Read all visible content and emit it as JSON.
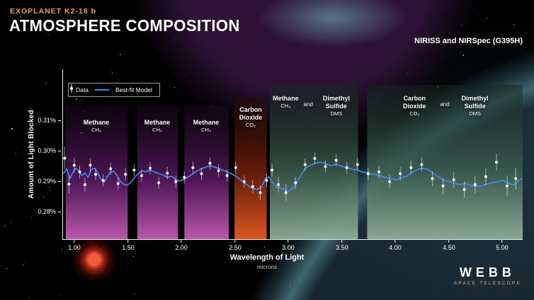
{
  "header": {
    "kicker": "EXOPLANET K2-18 b",
    "title": "ATMOSPHERE COMPOSITION",
    "instrument": "NIRISS and NIRSpec (G395H)"
  },
  "legend": {
    "data_label": "Data",
    "model_label": "Best-fit Model"
  },
  "colors": {
    "background": "#000000",
    "kicker": "#eca23e",
    "model_line": "#3d8dff",
    "data_point": "#ffffff",
    "webb_gold": "#d9b873",
    "band_gradients": {
      "methane": [
        "#1f0724",
        "#5a1a62",
        "#c45cb4"
      ],
      "co2": [
        "#260a05",
        "#7a220c",
        "#e85c24"
      ],
      "dms": [
        "#16251f",
        "#3c5c4e",
        "#8fae97"
      ]
    }
  },
  "chart_data": {
    "type": "line",
    "title": "Exoplanet K2-18 b Atmosphere Composition",
    "xlabel": "Wavelength of Light",
    "xunit": "microns",
    "ylabel": "Amount of Light Blocked",
    "xlim": [
      0.885,
      5.185
    ],
    "ylim": [
      0.2709,
      0.3267
    ],
    "x_ticks": [
      1.0,
      1.5,
      2.0,
      2.5,
      3.0,
      3.5,
      4.0,
      4.5,
      5.0
    ],
    "x_tick_labels": [
      "1.00",
      "1.50",
      "2.00",
      "2.50",
      "3.00",
      "3.50",
      "4.00",
      "4.50",
      "5.00"
    ],
    "y_ticks": [
      0.28,
      0.29,
      0.3,
      0.31
    ],
    "y_tick_labels": [
      "0.28%",
      "0.29%",
      "0.30%",
      "0.31%"
    ],
    "legend_position": "top-left",
    "grid": false,
    "bands": [
      {
        "molecule": "Methane",
        "formula": "CH₄",
        "x0": 0.91,
        "x1": 1.49,
        "style": "methane"
      },
      {
        "molecule": "Methane",
        "formula": "CH₄",
        "x0": 1.58,
        "x1": 1.96,
        "style": "methane"
      },
      {
        "molecule": "Methane",
        "formula": "CH₄",
        "x0": 2.02,
        "x1": 2.435,
        "style": "methane"
      },
      {
        "molecule": "Carbon Dioxide",
        "formula": "CO₂",
        "x0": 2.49,
        "x1": 2.79,
        "style": "co2"
      },
      {
        "name1": "Methane",
        "formula1": "CH₄",
        "conj": "and",
        "name2": "Dimethyl Sulfide",
        "formula2": "DMS",
        "x0": 2.82,
        "x1": 3.645,
        "style": "dms"
      },
      {
        "name1": "Carbon Dioxide",
        "formula1": "CO₂",
        "conj": "and",
        "name2": "Dimethyl Sulfide",
        "formula2": "DMS",
        "x0": 3.73,
        "x1": 5.185,
        "style": "dms"
      }
    ],
    "series": [
      {
        "name": "Best-fit Model",
        "type": "line",
        "color": "#3d8dff",
        "x": [
          0.89,
          0.92,
          0.95,
          0.98,
          1.0,
          1.03,
          1.06,
          1.09,
          1.12,
          1.15,
          1.18,
          1.21,
          1.24,
          1.27,
          1.3,
          1.33,
          1.36,
          1.39,
          1.42,
          1.45,
          1.48,
          1.51,
          1.54,
          1.57,
          1.6,
          1.63,
          1.66,
          1.7,
          1.74,
          1.78,
          1.82,
          1.86,
          1.9,
          1.94,
          1.98,
          2.02,
          2.06,
          2.1,
          2.14,
          2.18,
          2.22,
          2.26,
          2.3,
          2.34,
          2.38,
          2.42,
          2.46,
          2.5,
          2.54,
          2.58,
          2.62,
          2.66,
          2.7,
          2.74,
          2.78,
          2.81,
          2.84,
          2.88,
          2.92,
          2.96,
          3.0,
          3.04,
          3.08,
          3.12,
          3.16,
          3.2,
          3.24,
          3.28,
          3.32,
          3.36,
          3.4,
          3.44,
          3.48,
          3.52,
          3.56,
          3.6,
          3.64,
          3.68,
          3.72,
          3.76,
          3.8,
          3.85,
          3.9,
          3.95,
          4.0,
          4.05,
          4.1,
          4.15,
          4.2,
          4.25,
          4.3,
          4.35,
          4.4,
          4.45,
          4.5,
          4.55,
          4.6,
          4.65,
          4.7,
          4.75,
          4.8,
          4.85,
          4.9,
          4.95,
          5.0,
          5.05,
          5.1,
          5.14,
          5.18
        ],
        "y": [
          0.2925,
          0.294,
          0.2908,
          0.293,
          0.2942,
          0.2936,
          0.2918,
          0.2926,
          0.2912,
          0.2938,
          0.2942,
          0.2926,
          0.2905,
          0.2896,
          0.2916,
          0.293,
          0.2932,
          0.2918,
          0.29,
          0.289,
          0.2886,
          0.2892,
          0.2905,
          0.2918,
          0.2928,
          0.2934,
          0.293,
          0.2936,
          0.293,
          0.2924,
          0.292,
          0.2912,
          0.2916,
          0.2904,
          0.29,
          0.2906,
          0.2914,
          0.2924,
          0.2934,
          0.294,
          0.2946,
          0.295,
          0.2946,
          0.2942,
          0.2936,
          0.293,
          0.2924,
          0.2916,
          0.2906,
          0.2894,
          0.2884,
          0.2876,
          0.2872,
          0.288,
          0.2908,
          0.2914,
          0.2898,
          0.288,
          0.2876,
          0.2872,
          0.2866,
          0.288,
          0.29,
          0.2925,
          0.2944,
          0.2952,
          0.2958,
          0.2962,
          0.296,
          0.2954,
          0.295,
          0.2956,
          0.295,
          0.2946,
          0.2942,
          0.2938,
          0.2936,
          0.293,
          0.2928,
          0.2924,
          0.2922,
          0.2918,
          0.2912,
          0.2908,
          0.2904,
          0.291,
          0.2916,
          0.2928,
          0.2938,
          0.2942,
          0.2938,
          0.2926,
          0.2912,
          0.2902,
          0.2898,
          0.2892,
          0.2888,
          0.2892,
          0.2886,
          0.2882,
          0.2884,
          0.289,
          0.2894,
          0.2898,
          0.2902,
          0.2894,
          0.2886,
          0.29,
          0.2908
        ]
      },
      {
        "name": "Data",
        "type": "scatter",
        "color": "#ffffff",
        "x": [
          0.9,
          0.94,
          0.99,
          1.04,
          1.09,
          1.14,
          1.19,
          1.26,
          1.33,
          1.4,
          1.47,
          1.55,
          1.62,
          1.7,
          1.78,
          1.86,
          1.94,
          2.02,
          2.1,
          2.18,
          2.26,
          2.34,
          2.42,
          2.5,
          2.58,
          2.66,
          2.73,
          2.79,
          2.84,
          2.9,
          2.97,
          3.06,
          3.15,
          3.24,
          3.34,
          3.44,
          3.54,
          3.64,
          3.74,
          3.84,
          3.94,
          4.04,
          4.14,
          4.24,
          4.34,
          4.44,
          4.54,
          4.64,
          4.74,
          4.84,
          4.94,
          5.04,
          5.12
        ],
        "y": [
          0.2975,
          0.289,
          0.2952,
          0.293,
          0.2888,
          0.2952,
          0.2922,
          0.2902,
          0.294,
          0.2892,
          0.2922,
          0.2936,
          0.2918,
          0.2942,
          0.2894,
          0.2926,
          0.2898,
          0.2912,
          0.2944,
          0.2924,
          0.2958,
          0.2934,
          0.2918,
          0.2944,
          0.2898,
          0.2882,
          0.2862,
          0.2902,
          0.2936,
          0.2888,
          0.2862,
          0.2894,
          0.2954,
          0.2974,
          0.2948,
          0.2968,
          0.2944,
          0.2954,
          0.2924,
          0.293,
          0.2898,
          0.2924,
          0.2944,
          0.2954,
          0.2908,
          0.2884,
          0.2904,
          0.2872,
          0.2888,
          0.2914,
          0.2962,
          0.2884,
          0.2908
        ],
        "yerr": [
          0.0038,
          0.003,
          0.0025,
          0.0022,
          0.0022,
          0.0022,
          0.002,
          0.002,
          0.002,
          0.002,
          0.002,
          0.002,
          0.002,
          0.002,
          0.002,
          0.002,
          0.002,
          0.002,
          0.002,
          0.002,
          0.002,
          0.002,
          0.002,
          0.002,
          0.002,
          0.0022,
          0.0024,
          0.0022,
          0.0022,
          0.0026,
          0.0028,
          0.002,
          0.002,
          0.002,
          0.002,
          0.002,
          0.002,
          0.002,
          0.002,
          0.002,
          0.0022,
          0.0022,
          0.0022,
          0.0022,
          0.0024,
          0.0026,
          0.0026,
          0.0028,
          0.0028,
          0.0028,
          0.0028,
          0.0034,
          0.0036
        ]
      }
    ]
  },
  "webb_logo": {
    "name": "WEBB",
    "sub": "SPACE TELESCOPE"
  }
}
